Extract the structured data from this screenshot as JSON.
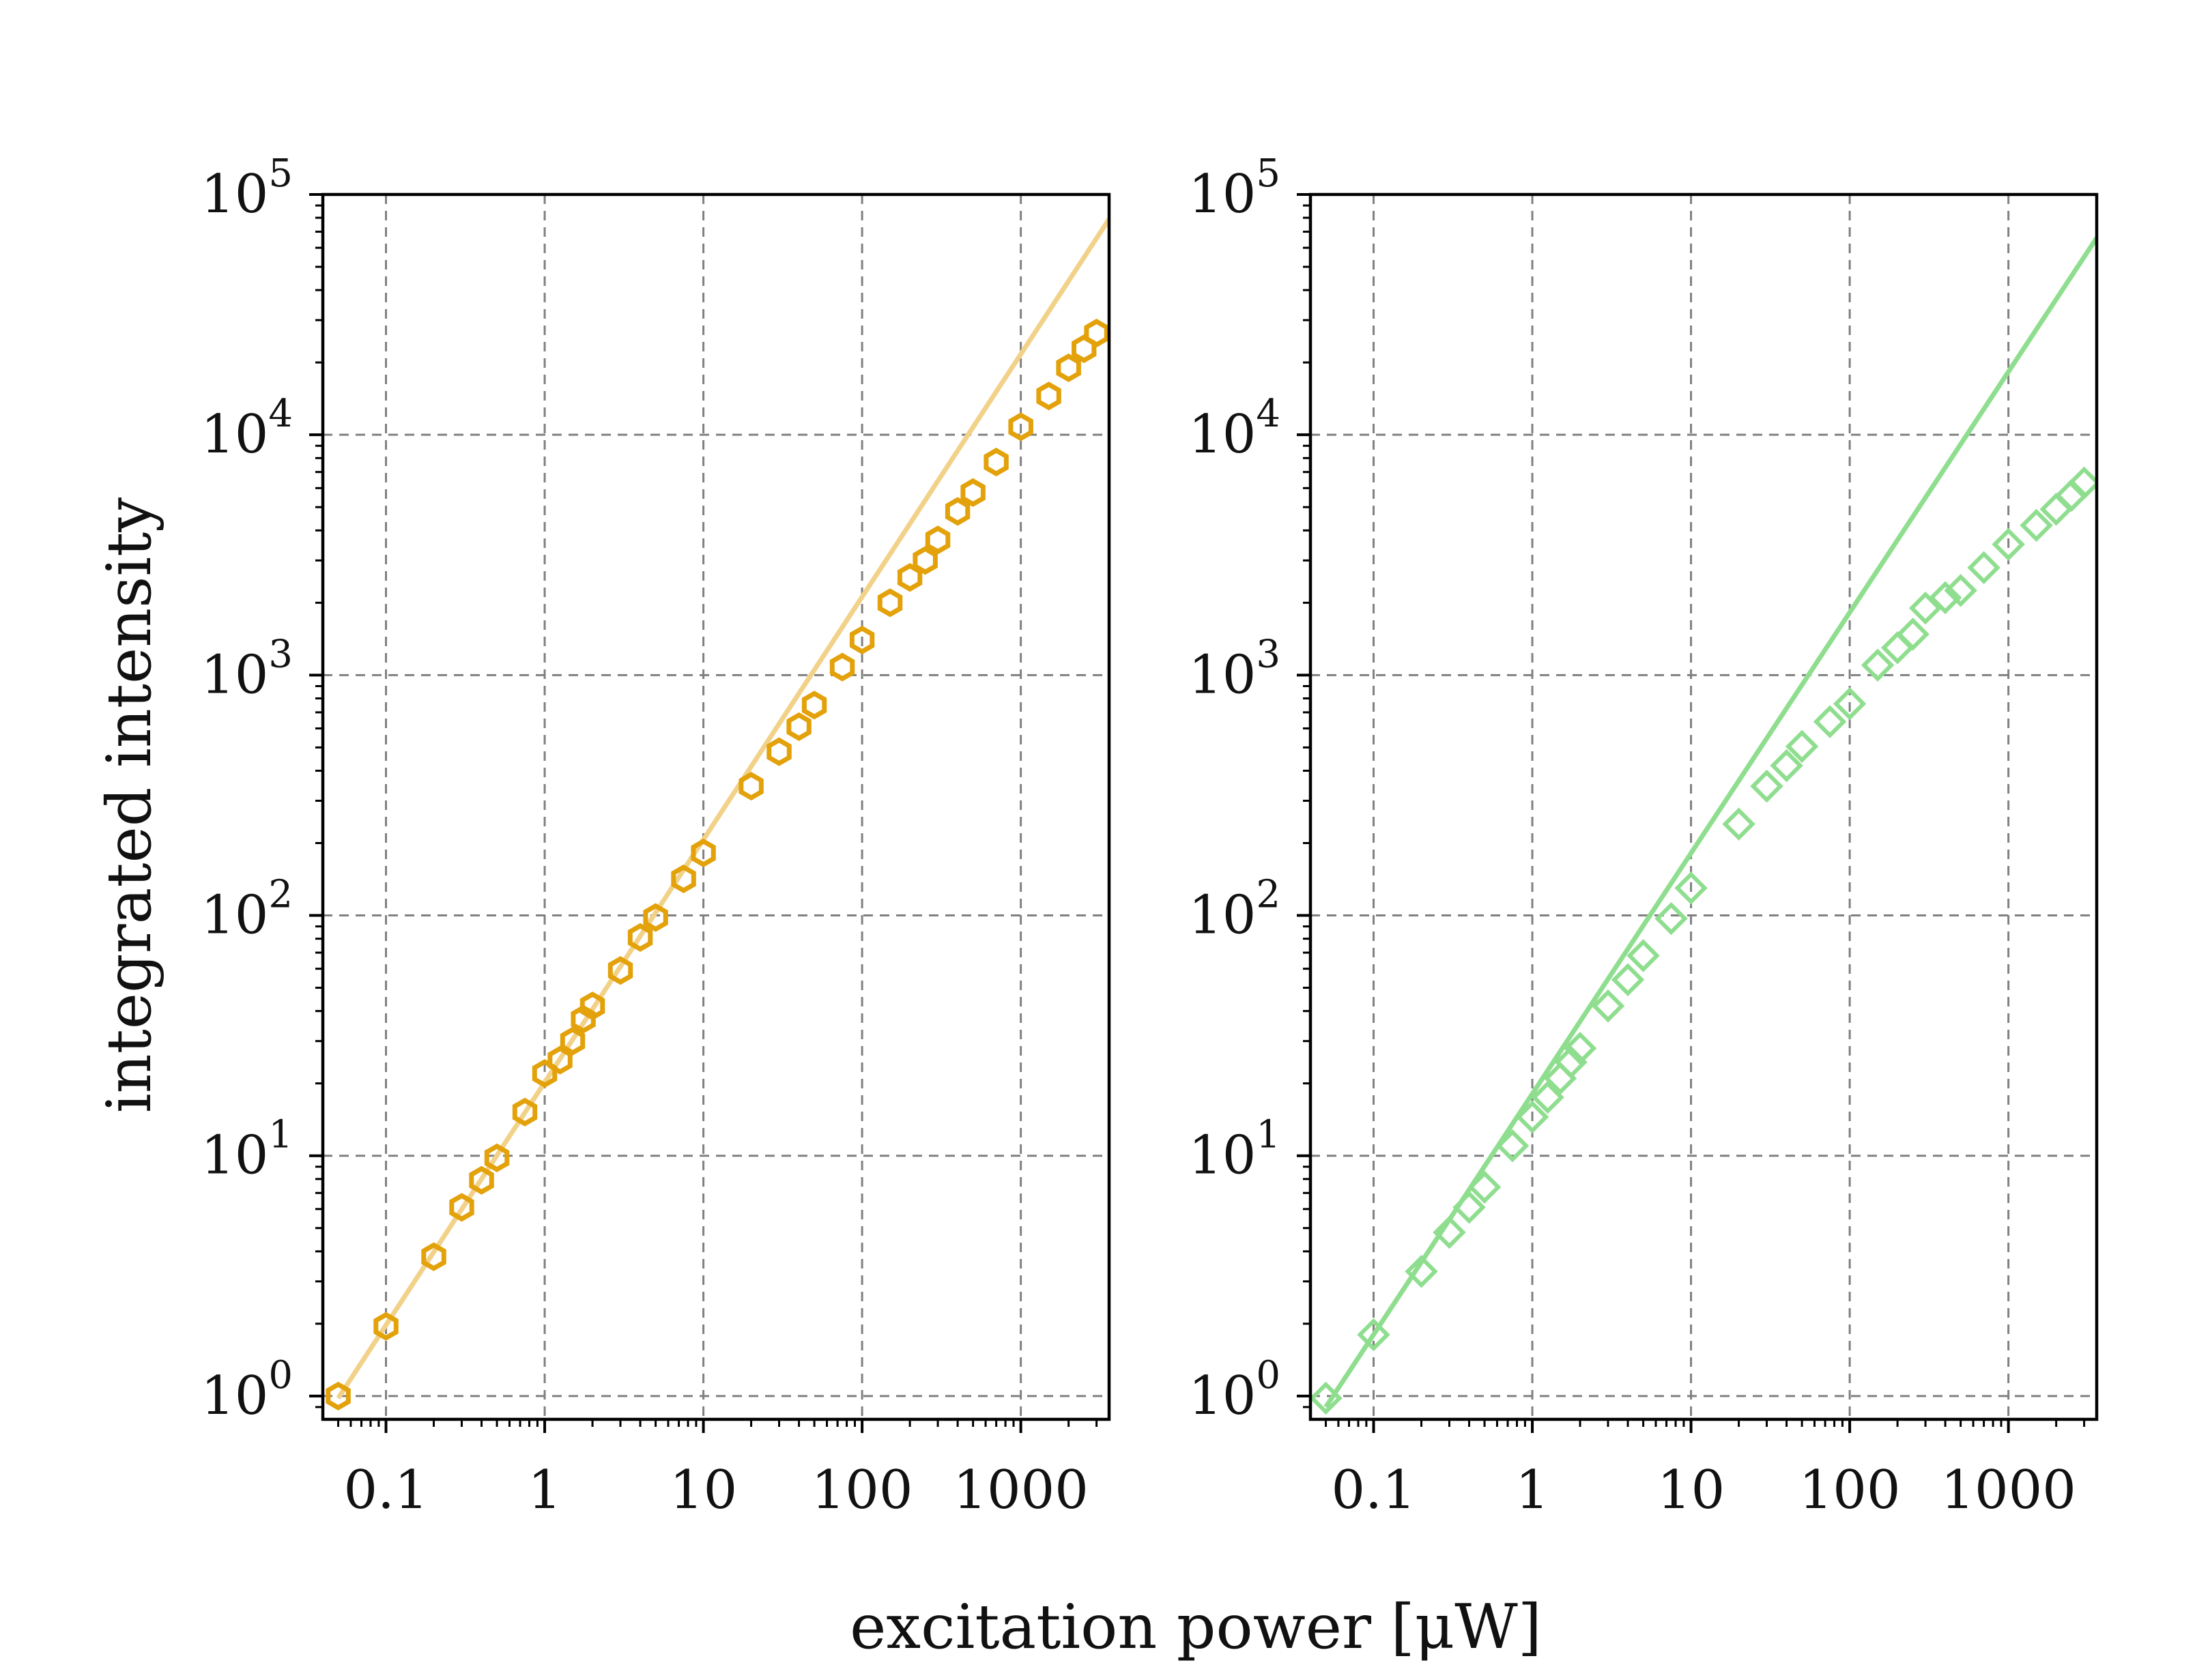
{
  "figure": {
    "xlabel": "excitation power [μW]",
    "ylabel": "integrated intensity"
  },
  "chart_data": [
    {
      "type": "scatter",
      "panel": "left",
      "xscale": "log",
      "yscale": "log",
      "xlim": [
        0.04,
        3600
      ],
      "ylim": [
        0.8,
        100000
      ],
      "xticks": [
        0.1,
        1,
        10,
        100,
        1000
      ],
      "xtick_labels": [
        "0.1",
        "1",
        "10",
        "100",
        "1000"
      ],
      "yticks": [
        1,
        10,
        100,
        1000,
        10000,
        100000
      ],
      "ytick_base": "10",
      "ytick_exponents": [
        "0",
        "1",
        "2",
        "3",
        "4",
        "5"
      ],
      "grid": true,
      "series": [
        {
          "name": "data",
          "marker": "hexagon",
          "color": "#E3A10A",
          "x": [
            0.05,
            0.1,
            0.2,
            0.3,
            0.4,
            0.5,
            0.75,
            1,
            1.25,
            1.5,
            1.75,
            2,
            3,
            4,
            5,
            7.5,
            10,
            20,
            30,
            40,
            50,
            75,
            100,
            150,
            200,
            250,
            300,
            400,
            500,
            700,
            1000,
            1500,
            2000,
            2500,
            3000
          ],
          "y": [
            1.0,
            1.95,
            3.8,
            6.1,
            7.9,
            9.8,
            15.2,
            22,
            25,
            30,
            37,
            42,
            59,
            81,
            98,
            142,
            182,
            345,
            480,
            610,
            750,
            1080,
            1400,
            2000,
            2550,
            3000,
            3650,
            4800,
            5750,
            7700,
            10800,
            14500,
            19000,
            22800,
            26500
          ]
        },
        {
          "name": "fit",
          "style": "line",
          "color": "#F2D188",
          "x": [
            0.05,
            3600
          ],
          "y": [
            0.98,
            79000
          ]
        }
      ]
    },
    {
      "type": "scatter",
      "panel": "right",
      "xscale": "log",
      "yscale": "log",
      "xlim": [
        0.04,
        3600
      ],
      "ylim": [
        0.8,
        100000
      ],
      "xticks": [
        0.1,
        1,
        10,
        100,
        1000
      ],
      "xtick_labels": [
        "0.1",
        "1",
        "10",
        "100",
        "1000"
      ],
      "yticks": [
        1,
        10,
        100,
        1000,
        10000,
        100000
      ],
      "ytick_base": "10",
      "ytick_exponents": [
        "0",
        "1",
        "2",
        "3",
        "4",
        "5"
      ],
      "grid": true,
      "series": [
        {
          "name": "data",
          "marker": "diamond",
          "color": "#8FDE8F",
          "x": [
            0.05,
            0.1,
            0.2,
            0.3,
            0.4,
            0.5,
            0.75,
            1,
            1.25,
            1.5,
            1.75,
            2,
            3,
            4,
            5,
            7.5,
            10,
            20,
            30,
            40,
            50,
            75,
            100,
            150,
            200,
            250,
            300,
            400,
            500,
            700,
            1000,
            1500,
            2000,
            2500,
            3000
          ],
          "y": [
            0.98,
            1.8,
            3.3,
            4.8,
            6.1,
            7.4,
            11,
            14.5,
            17.5,
            21,
            24.5,
            28,
            42,
            54,
            68,
            97,
            130,
            240,
            345,
            420,
            505,
            640,
            760,
            1100,
            1300,
            1480,
            1900,
            2100,
            2250,
            2800,
            3500,
            4200,
            4900,
            5600,
            6300
          ]
        },
        {
          "name": "fit",
          "style": "line",
          "color": "#8FDE8F",
          "x": [
            0.05,
            3600
          ],
          "y": [
            0.9,
            66000
          ]
        }
      ]
    }
  ]
}
